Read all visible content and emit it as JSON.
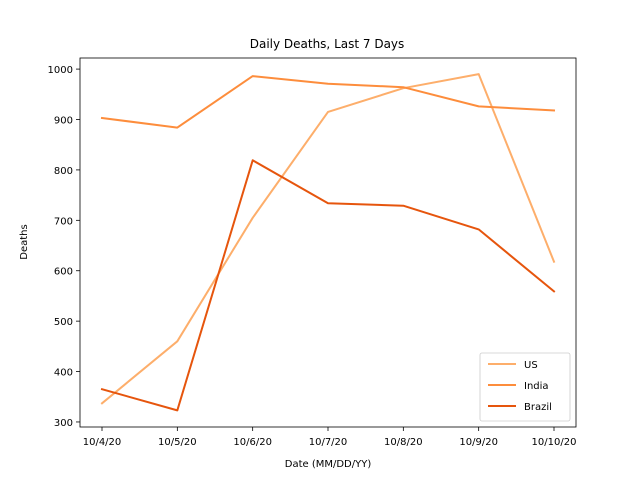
{
  "chart_data": {
    "type": "line",
    "title": "Daily Deaths, Last 7 Days",
    "xlabel": "Date (MM/DD/YY)",
    "ylabel": "Deaths",
    "categories": [
      "10/4/20",
      "10/5/20",
      "10/6/20",
      "10/7/20",
      "10/8/20",
      "10/9/20",
      "10/10/20"
    ],
    "ylim": [
      290,
      1022
    ],
    "yticks": [
      "300",
      "400",
      "500",
      "600",
      "700",
      "800",
      "900",
      "1000"
    ],
    "series": [
      {
        "name": "US",
        "color": "#fdae6b",
        "values": [
          337,
          460,
          705,
          915,
          962,
          990,
          618
        ]
      },
      {
        "name": "India",
        "color": "#fd8d3c",
        "values": [
          903,
          884,
          986,
          971,
          964,
          926,
          918
        ]
      },
      {
        "name": "Brazil",
        "color": "#e6550d",
        "values": [
          365,
          323,
          819,
          734,
          729,
          682,
          559
        ]
      }
    ],
    "legend_position": "lower right",
    "grid": false
  }
}
